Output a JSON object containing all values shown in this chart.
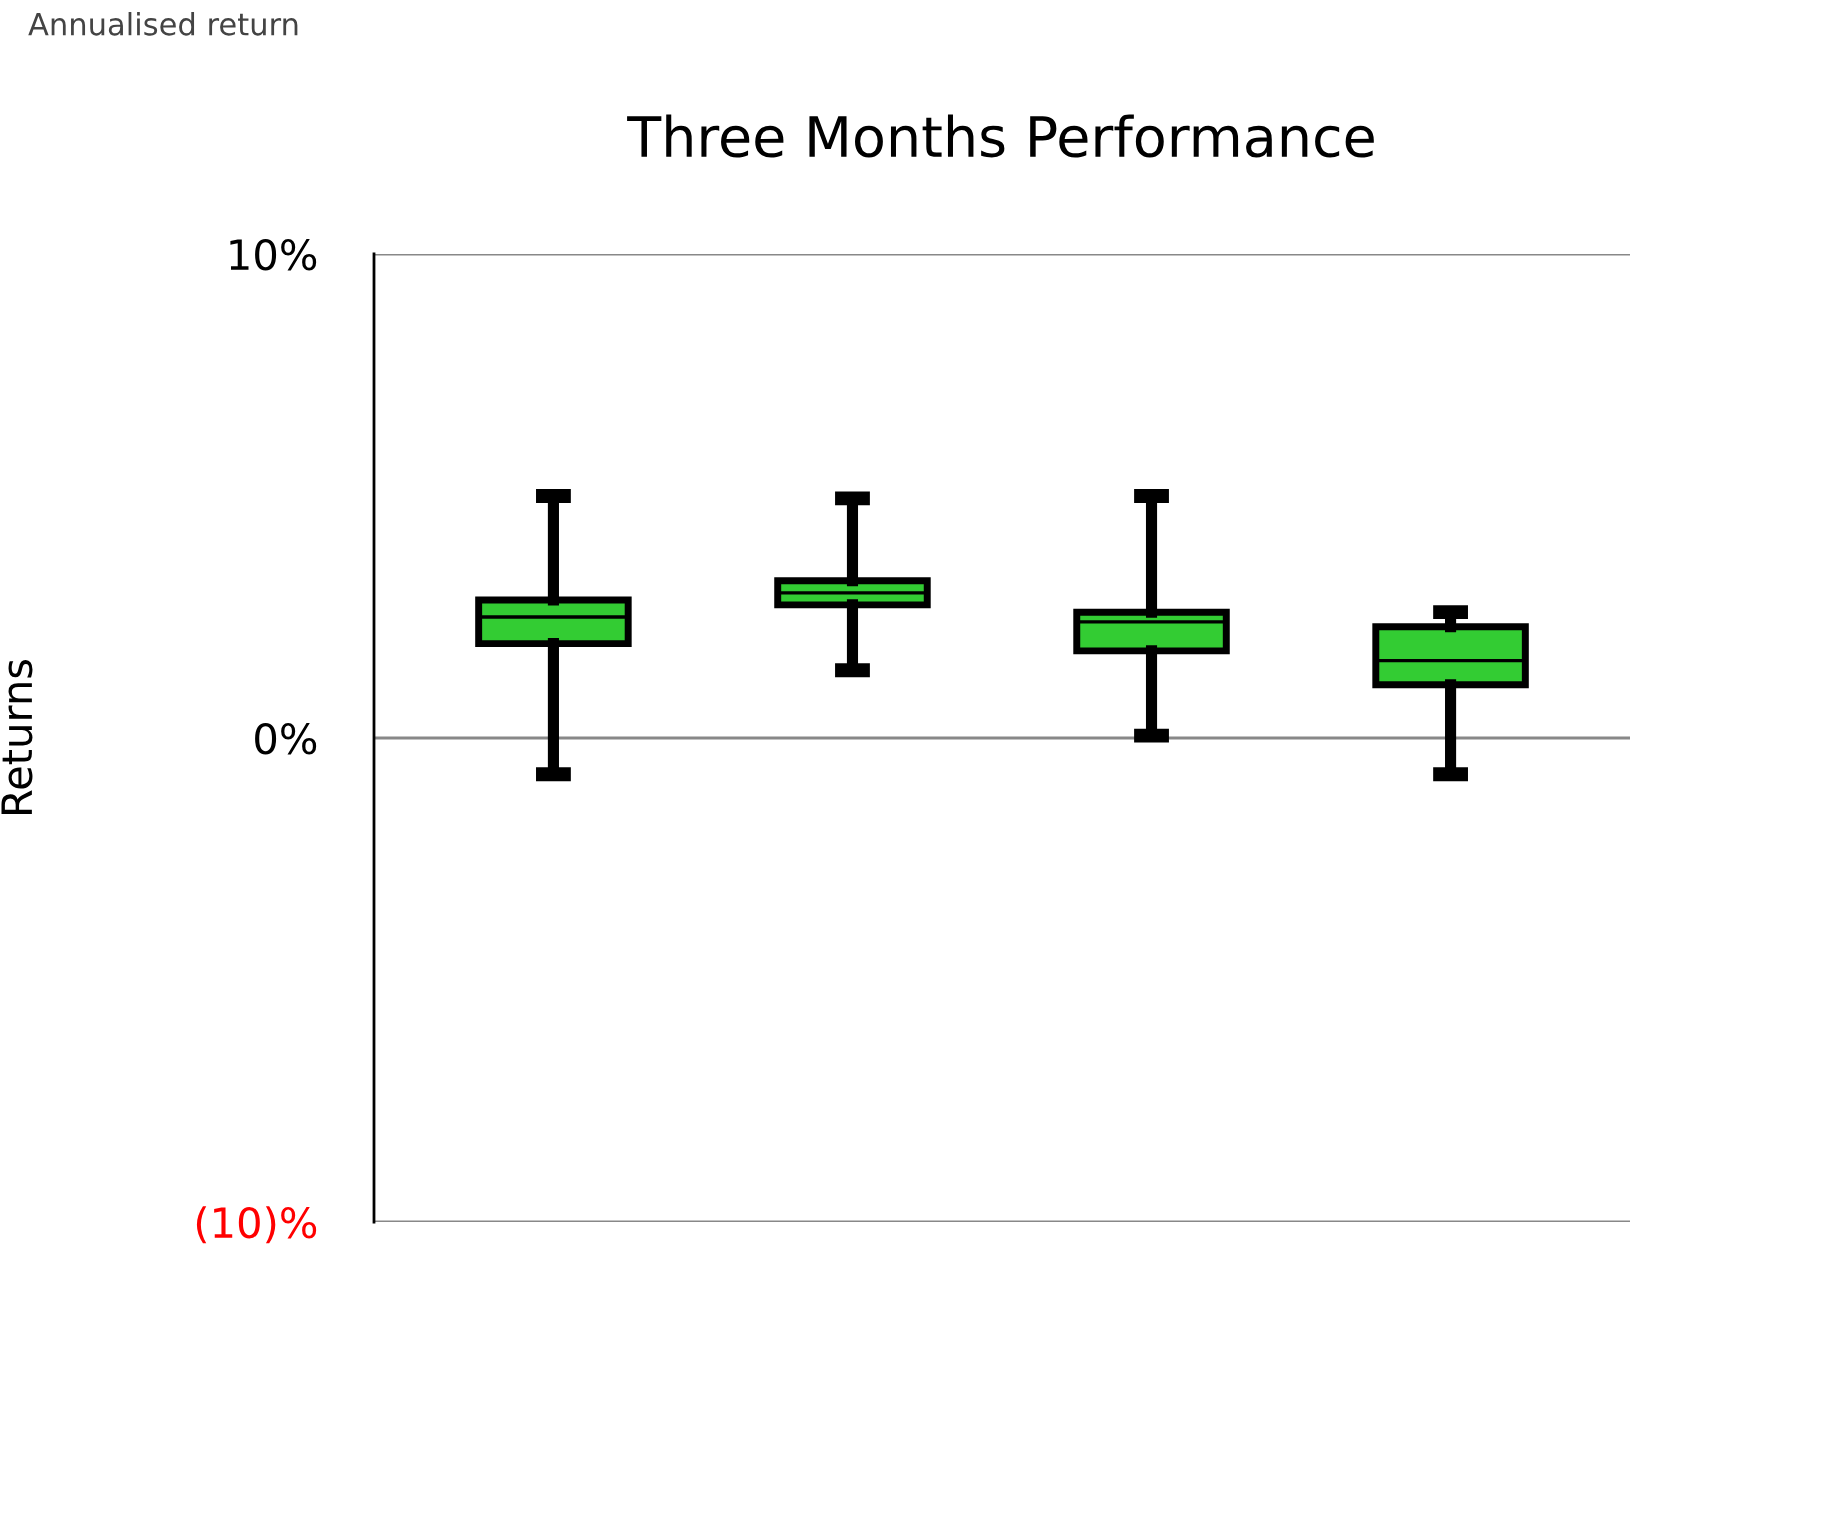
{
  "chart_data": {
    "type": "box",
    "title": "Three Months Performance",
    "ylabel": "Returns",
    "annotations": [
      "Annualised return"
    ],
    "categories": [
      null,
      null,
      null,
      null
    ],
    "color": "#33cc33",
    "boxes": [
      {
        "low": -0.75,
        "q1": 1.95,
        "median": 2.5,
        "q3": 2.85,
        "high": 5.0
      },
      {
        "low": 1.4,
        "q1": 2.75,
        "median": 3.0,
        "q3": 3.25,
        "high": 4.95
      },
      {
        "low": 0.05,
        "q1": 1.8,
        "median": 2.4,
        "q3": 2.6,
        "high": 5.0
      },
      {
        "low": -0.75,
        "q1": 1.1,
        "median": 1.6,
        "q3": 2.3,
        "high": 2.6
      }
    ],
    "ylim": [
      -10,
      10
    ],
    "yticks": [
      {
        "value": 10,
        "label": "10%"
      },
      {
        "value": 0,
        "label": "0%"
      },
      {
        "value": -10,
        "label": "(10)%"
      }
    ],
    "grid": "y"
  }
}
